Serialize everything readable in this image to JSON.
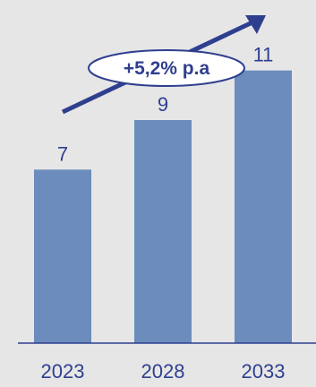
{
  "colors": {
    "background": "#e6e6e6",
    "bar": "#6b8cbc",
    "text": "#2f3f8f",
    "arrow": "#2f3f8f",
    "axis": "#2f3f8f"
  },
  "growth_badge": {
    "label": "+5,2% p.a",
    "icon": "trend-arrow-icon"
  },
  "chart_data": {
    "type": "bar",
    "categories": [
      "2023",
      "2028",
      "2033"
    ],
    "values": [
      7,
      9,
      11
    ],
    "ylim": [
      0,
      12
    ],
    "grid": false,
    "legend": "none"
  }
}
